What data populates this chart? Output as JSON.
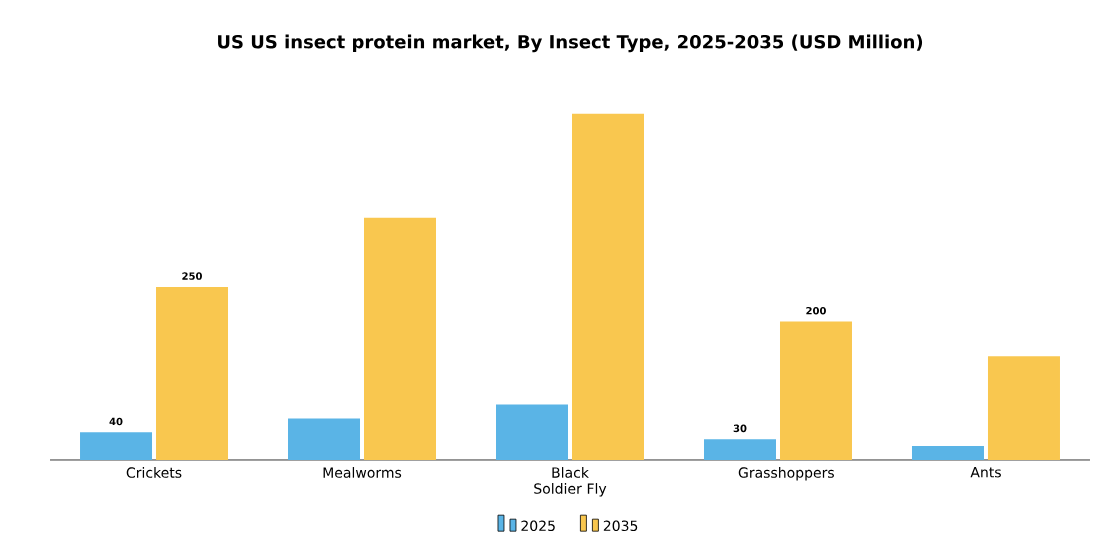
{
  "chart_data": {
    "type": "bar",
    "title": "US US insect protein market, By Insect Type, 2025-2035 (USD Million)",
    "categories": [
      "Crickets",
      "Mealworms",
      "Black Soldier Fly",
      "Grasshoppers",
      "Ants"
    ],
    "series": [
      {
        "name": "2025",
        "color": "#5ab4e6",
        "values": [
          40,
          60,
          80,
          30,
          20
        ],
        "value_labels": [
          "40",
          null,
          null,
          "30",
          null
        ]
      },
      {
        "name": "2035",
        "color": "#f9c74f",
        "values": [
          250,
          350,
          500,
          200,
          150
        ],
        "value_labels": [
          "250",
          null,
          null,
          "200",
          null
        ]
      }
    ],
    "legend": "bottom"
  }
}
